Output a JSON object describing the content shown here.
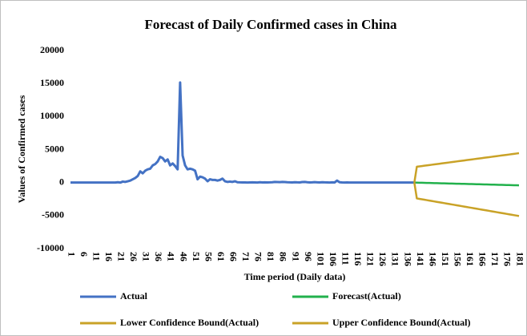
{
  "chart_data": {
    "type": "line",
    "title": "Forecast of Daily Confirmed cases in China",
    "x_label": "Time period (Daily data)",
    "y_label": "Values of Confirmed cases",
    "xlim": [
      1,
      181
    ],
    "xticks": [
      1,
      6,
      11,
      16,
      21,
      26,
      31,
      36,
      41,
      46,
      51,
      56,
      61,
      66,
      71,
      76,
      81,
      86,
      91,
      96,
      101,
      106,
      111,
      116,
      121,
      126,
      131,
      136,
      141,
      146,
      151,
      156,
      161,
      166,
      171,
      176,
      181
    ],
    "ylim": [
      -10000,
      20000
    ],
    "yticks": [
      -10000,
      -5000,
      0,
      5000,
      10000,
      15000,
      20000
    ],
    "series": [
      {
        "name": "Actual",
        "color": "#4472c4",
        "x": [
          1,
          2,
          3,
          4,
          5,
          6,
          7,
          8,
          9,
          10,
          11,
          12,
          13,
          14,
          15,
          16,
          17,
          18,
          19,
          20,
          21,
          22,
          23,
          24,
          25,
          26,
          27,
          28,
          29,
          30,
          31,
          32,
          33,
          34,
          35,
          36,
          37,
          38,
          39,
          40,
          41,
          42,
          43,
          44,
          45,
          46,
          47,
          48,
          49,
          50,
          51,
          52,
          53,
          54,
          55,
          56,
          57,
          58,
          59,
          60,
          61,
          62,
          63,
          64,
          65,
          66,
          67,
          68,
          69,
          70,
          71,
          72,
          73,
          74,
          75,
          76,
          77,
          78,
          79,
          80,
          81,
          82,
          83,
          84,
          85,
          86,
          87,
          88,
          89,
          90,
          91,
          92,
          93,
          94,
          95,
          96,
          97,
          98,
          99,
          100,
          101,
          102,
          103,
          104,
          105,
          106,
          107,
          108,
          109,
          110,
          111,
          112,
          113,
          114,
          115,
          116,
          117,
          118,
          119,
          120,
          121,
          122,
          123,
          124,
          125,
          126,
          127,
          128,
          129,
          130,
          131,
          132,
          133,
          134,
          135,
          136,
          137,
          138,
          139
        ],
        "values": [
          0,
          0,
          0,
          0,
          0,
          0,
          0,
          0,
          0,
          0,
          0,
          0,
          0,
          0,
          0,
          0,
          0,
          0,
          0,
          50,
          0,
          150,
          100,
          200,
          300,
          500,
          700,
          1000,
          1700,
          1400,
          1800,
          2000,
          2100,
          2600,
          2800,
          3200,
          3900,
          3700,
          3200,
          3500,
          2600,
          2900,
          2500,
          2000,
          15150,
          4100,
          2600,
          2000,
          2100,
          2000,
          1800,
          500,
          900,
          800,
          600,
          200,
          500,
          400,
          400,
          300,
          400,
          600,
          200,
          100,
          150,
          100,
          200,
          50,
          30,
          20,
          20,
          10,
          20,
          30,
          20,
          10,
          50,
          20,
          30,
          20,
          30,
          50,
          100,
          80,
          60,
          100,
          80,
          50,
          30,
          20,
          50,
          30,
          20,
          80,
          100,
          50,
          20,
          30,
          60,
          40,
          20,
          50,
          30,
          20,
          10,
          30,
          20,
          300,
          50,
          20,
          10,
          20,
          10,
          10,
          0,
          10,
          0,
          0,
          10,
          0,
          0,
          0,
          0,
          0,
          0,
          0,
          0,
          0,
          0,
          0,
          0,
          0,
          0,
          0,
          0,
          0,
          0,
          0,
          0
        ]
      },
      {
        "name": "Forecast(Actual)",
        "color": "#22b14c",
        "x": [
          139,
          140,
          141,
          142,
          143,
          144,
          145,
          146,
          147,
          148,
          149,
          150,
          151,
          152,
          153,
          154,
          155,
          156,
          157,
          158,
          159,
          160,
          161,
          162,
          163,
          164,
          165,
          166,
          167,
          168,
          169,
          170,
          171,
          172,
          173,
          174,
          175,
          176,
          177,
          178,
          179,
          180,
          181
        ],
        "values": [
          0,
          -10,
          -20,
          -30,
          -40,
          -50,
          -60,
          -70,
          -80,
          -90,
          -100,
          -110,
          -120,
          -130,
          -140,
          -150,
          -160,
          -170,
          -180,
          -190,
          -200,
          -210,
          -220,
          -230,
          -240,
          -250,
          -260,
          -270,
          -280,
          -290,
          -300,
          -310,
          -320,
          -330,
          -340,
          -350,
          -360,
          -370,
          -380,
          -390,
          -400,
          -410,
          -420
        ]
      },
      {
        "name": "Lower Confidence Bound(Actual)",
        "color": "#c9a227",
        "x": [
          139,
          140,
          141,
          142,
          143,
          144,
          145,
          146,
          147,
          148,
          149,
          150,
          151,
          152,
          153,
          154,
          155,
          156,
          157,
          158,
          159,
          160,
          161,
          162,
          163,
          164,
          165,
          166,
          167,
          168,
          169,
          170,
          171,
          172,
          173,
          174,
          175,
          176,
          177,
          178,
          179,
          180,
          181
        ],
        "values": [
          0,
          -2400,
          -2465,
          -2530,
          -2595,
          -2660,
          -2725,
          -2790,
          -2855,
          -2920,
          -2985,
          -3050,
          -3115,
          -3180,
          -3245,
          -3310,
          -3375,
          -3440,
          -3505,
          -3570,
          -3635,
          -3700,
          -3765,
          -3830,
          -3895,
          -3960,
          -4025,
          -4090,
          -4155,
          -4220,
          -4285,
          -4350,
          -4415,
          -4480,
          -4545,
          -4610,
          -4675,
          -4740,
          -4805,
          -4870,
          -4935,
          -5000,
          -5065
        ]
      },
      {
        "name": "Upper Confidence Bound(Actual)",
        "color": "#c9a227",
        "x": [
          139,
          140,
          141,
          142,
          143,
          144,
          145,
          146,
          147,
          148,
          149,
          150,
          151,
          152,
          153,
          154,
          155,
          156,
          157,
          158,
          159,
          160,
          161,
          162,
          163,
          164,
          165,
          166,
          167,
          168,
          169,
          170,
          171,
          172,
          173,
          174,
          175,
          176,
          177,
          178,
          179,
          180,
          181
        ],
        "values": [
          0,
          2400,
          2450,
          2500,
          2550,
          2600,
          2650,
          2700,
          2750,
          2800,
          2850,
          2900,
          2950,
          3000,
          3050,
          3100,
          3150,
          3200,
          3250,
          3300,
          3350,
          3400,
          3450,
          3500,
          3550,
          3600,
          3650,
          3700,
          3750,
          3800,
          3850,
          3900,
          3950,
          4000,
          4050,
          4100,
          4150,
          4200,
          4250,
          4300,
          4350,
          4400,
          4450
        ]
      }
    ]
  }
}
